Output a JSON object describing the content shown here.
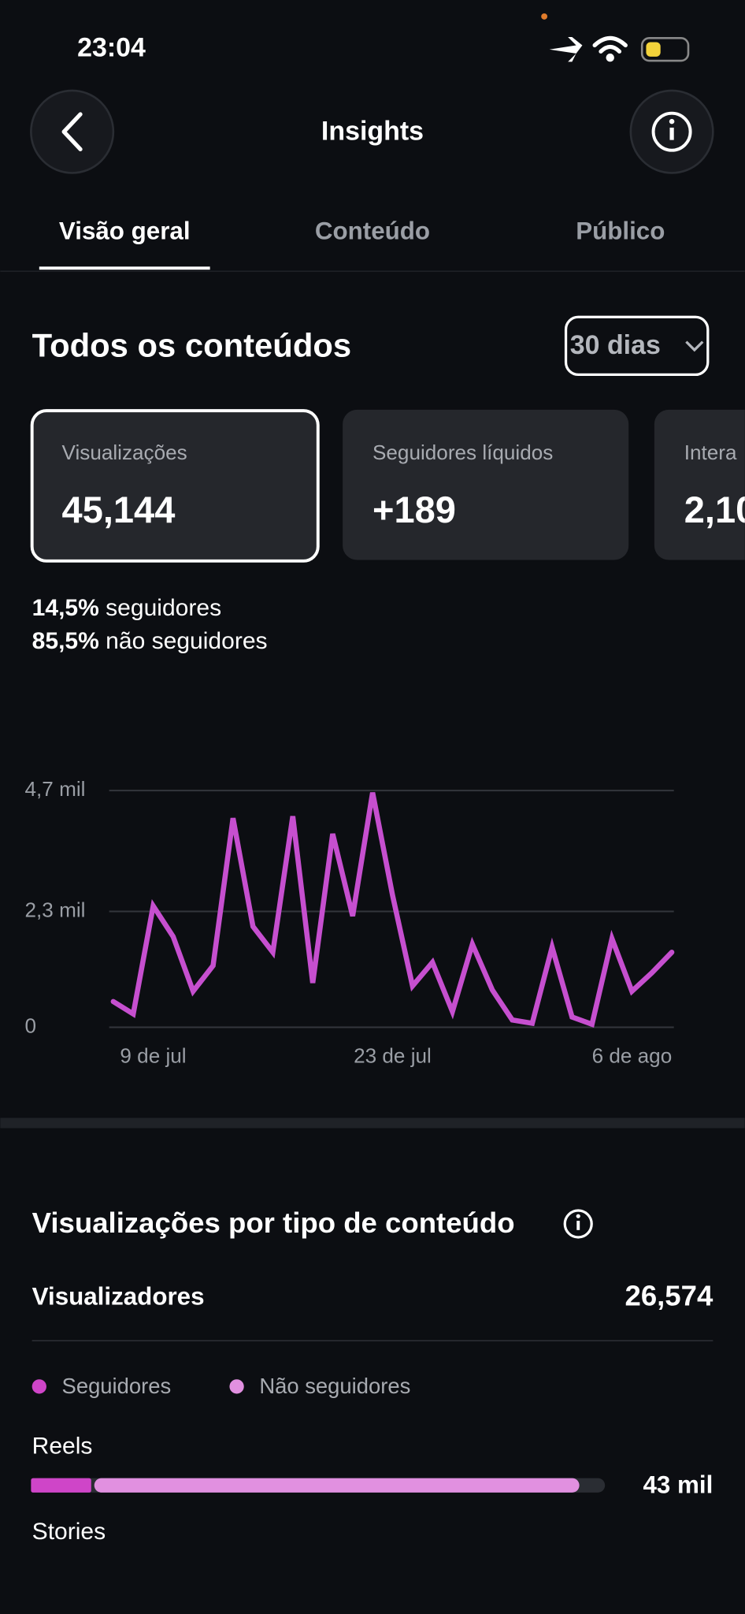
{
  "status_bar": {
    "time": "23:04"
  },
  "header": {
    "title": "Insights"
  },
  "tabs": [
    "Visão geral",
    "Conteúdo",
    "Público"
  ],
  "overview": {
    "title": "Todos os conteúdos",
    "period": "30 dias",
    "cards": [
      {
        "label": "Visualizações",
        "value": "45,144"
      },
      {
        "label": "Seguidores líquidos",
        "value": "+189"
      },
      {
        "label": "Intera",
        "value": "2,10"
      }
    ],
    "breakdown": [
      {
        "pct": "14,5%",
        "text": "seguidores"
      },
      {
        "pct": "85,5%",
        "text": "não seguidores"
      }
    ]
  },
  "by_type": {
    "title": "Visualizações por tipo de conteúdo",
    "viewers_label": "Visualizadores",
    "viewers_value": "26,574"
  },
  "chart_data": [
    {
      "type": "line",
      "grid": true,
      "categories": [
        null,
        null,
        "9 de jul",
        null,
        null,
        null,
        null,
        null,
        null,
        null,
        null,
        null,
        null,
        null,
        "23 de jul",
        null,
        null,
        null,
        null,
        null,
        null,
        null,
        null,
        null,
        null,
        null,
        "6 de ago",
        null,
        null
      ],
      "series": [
        {
          "name": "Visualizações",
          "color": "#c64fcf",
          "values": [
            510,
            265,
            2410,
            1800,
            715,
            1225,
            4150,
            2000,
            1490,
            4190,
            880,
            3840,
            2210,
            4660,
            2620,
            820,
            1290,
            310,
            1650,
            740,
            145,
            80,
            1590,
            205,
            60,
            1760,
            715,
            1080,
            1490
          ]
        }
      ],
      "ylim": [
        0,
        4700
      ],
      "yticks": [
        0,
        {
          "value": 2300,
          "label": "2,3 mil"
        },
        {
          "value": 4700,
          "label": "4,7 mil"
        }
      ]
    },
    {
      "type": "bar",
      "orientation": "horizontal",
      "stacked": true,
      "categories": [
        "Reels",
        "Stories"
      ],
      "series": [
        {
          "name": "Seguidores",
          "color": "#cf45c8",
          "values": [
            4840,
            null
          ]
        },
        {
          "name": "Não seguidores",
          "color": "#e190e0",
          "values": [
            38150,
            null
          ]
        }
      ],
      "total_labels": [
        "43 mil",
        null
      ],
      "xlim": [
        0,
        45000
      ]
    }
  ]
}
